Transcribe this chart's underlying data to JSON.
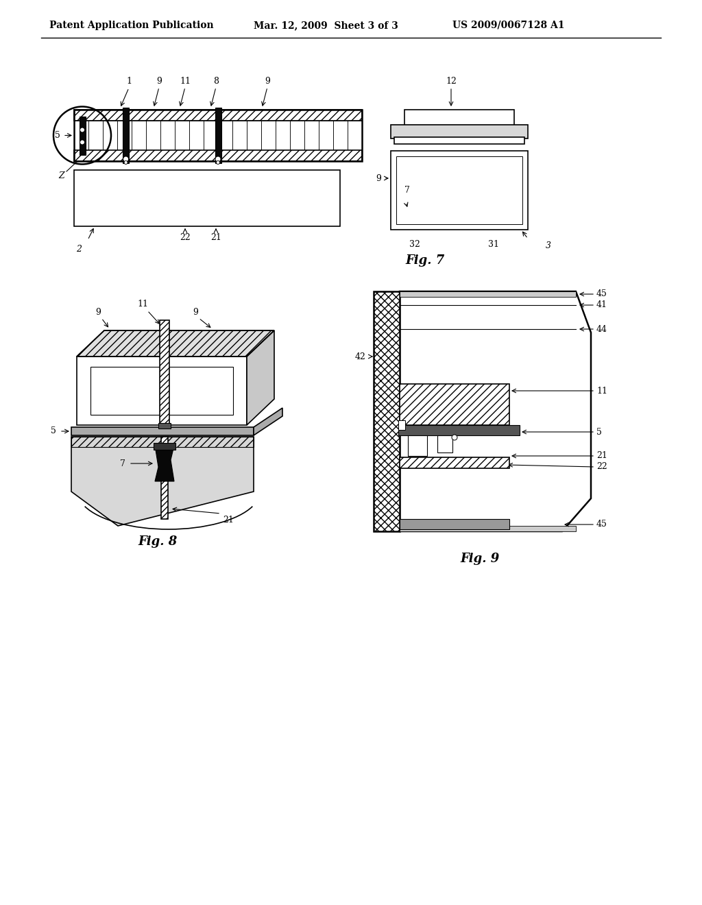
{
  "background_color": "#ffffff",
  "header_left": "Patent Application Publication",
  "header_mid": "Mar. 12, 2009  Sheet 3 of 3",
  "header_right": "US 2009/0067128 A1",
  "line_color": "#000000",
  "font_size_header": 10,
  "font_size_label": 13,
  "font_size_ref": 9,
  "fig7_label": "Fig. 7",
  "fig8_label": "Fig. 8",
  "fig9_label": "Fig. 9"
}
